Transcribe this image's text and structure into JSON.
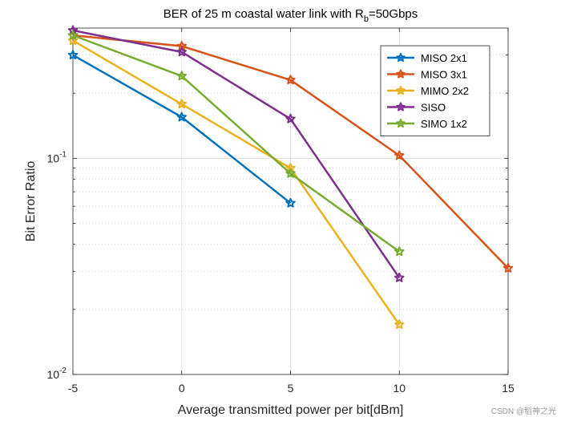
{
  "chart_data": {
    "type": "line",
    "title": {
      "prefix": "BER of 25 m coastal water link with R",
      "subscript": "b",
      "suffix": "=50Gbps"
    },
    "xlabel": "Average transmitted power per bit[dBm]",
    "ylabel": "Bit Error Ratio",
    "xlim": [
      -5,
      15
    ],
    "ylim": [
      0.01,
      0.4
    ],
    "yscale": "log",
    "grid": true,
    "legend_position": "top-right",
    "x_ticks": [
      -5,
      0,
      5,
      10,
      15
    ],
    "x_tick_labels": [
      "-5",
      "0",
      "5",
      "10",
      "15"
    ],
    "y_ticks": [
      {
        "value": 0.1,
        "base": "10",
        "exp": "-1"
      },
      {
        "value": 0.01,
        "base": "10",
        "exp": "-2"
      }
    ],
    "series": [
      {
        "name": "MISO 2x1",
        "color": "#0072BD",
        "x": [
          -5,
          0,
          5
        ],
        "y": [
          0.3,
          0.155,
          0.062
        ]
      },
      {
        "name": "MISO 3x1",
        "color": "#D95319",
        "x": [
          -5,
          0,
          5,
          10,
          15
        ],
        "y": [
          0.37,
          0.33,
          0.23,
          0.103,
          0.031
        ]
      },
      {
        "name": "MIMO 2x2",
        "color": "#EDB120",
        "x": [
          -5,
          0,
          5,
          10
        ],
        "y": [
          0.35,
          0.178,
          0.09,
          0.017
        ]
      },
      {
        "name": "SISO",
        "color": "#7E2F8E",
        "x": [
          -5,
          0,
          5,
          10
        ],
        "y": [
          0.39,
          0.31,
          0.152,
          0.028
        ]
      },
      {
        "name": "SIMO 1x2",
        "color": "#77AC30",
        "x": [
          -5,
          0,
          5,
          10
        ],
        "y": [
          0.37,
          0.24,
          0.085,
          0.037
        ]
      }
    ]
  },
  "watermark": "CSDN @稻神之光"
}
